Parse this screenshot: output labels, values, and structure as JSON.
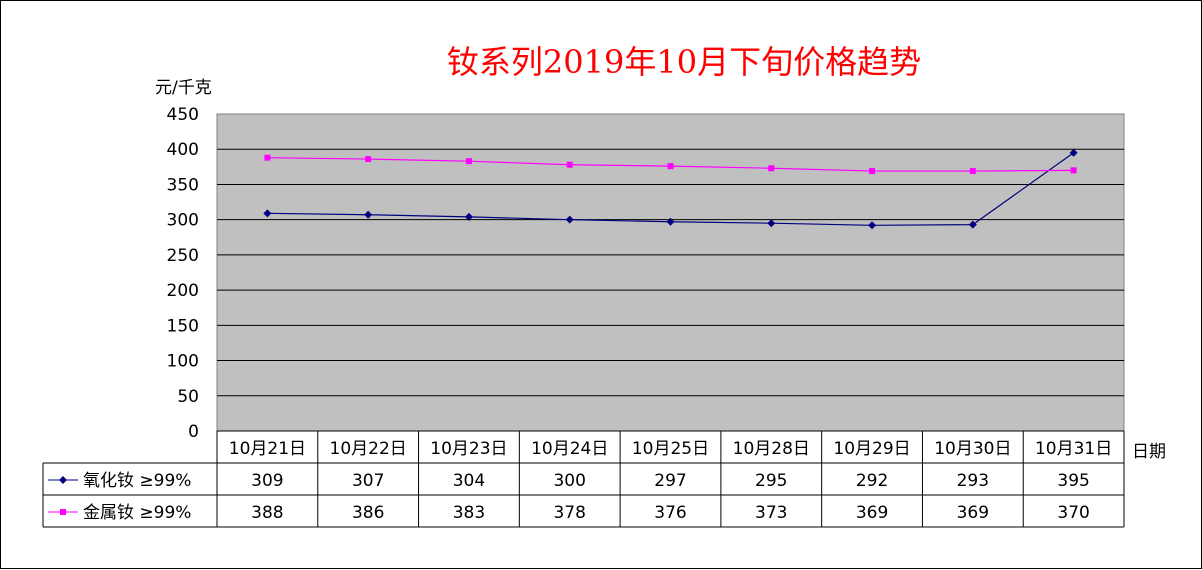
{
  "chart_data": {
    "type": "line",
    "title": "钕系列2019年10月下旬价格趋势",
    "ylabel": "元/千克",
    "xlabel": "日期",
    "ylim": [
      0,
      450
    ],
    "yticks": [
      0,
      50,
      100,
      150,
      200,
      250,
      300,
      350,
      400,
      450
    ],
    "categories": [
      "10月21日",
      "10月22日",
      "10月23日",
      "10月24日",
      "10月25日",
      "10月28日",
      "10月29日",
      "10月30日",
      "10月31日"
    ],
    "grid": true,
    "legend": "data-table-left",
    "series": [
      {
        "name": "氧化钕 ≥99%",
        "color": "#000080",
        "marker": "diamond",
        "values": [
          309,
          307,
          304,
          300,
          297,
          295,
          292,
          293,
          395
        ]
      },
      {
        "name": "金属钕 ≥99%",
        "color": "#ff00ff",
        "marker": "square",
        "values": [
          388,
          386,
          383,
          378,
          376,
          373,
          369,
          369,
          370
        ]
      }
    ],
    "plot_background": "#c0c0c0"
  }
}
